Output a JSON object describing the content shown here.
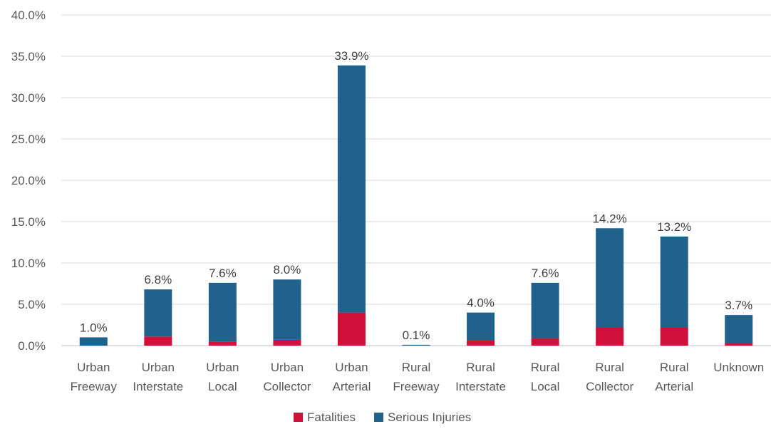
{
  "chart_data": {
    "type": "bar",
    "stacked": true,
    "categories": [
      [
        "Urban",
        "Freeway"
      ],
      [
        "Urban",
        "Interstate"
      ],
      [
        "Urban",
        "Local"
      ],
      [
        "Urban",
        "Collector"
      ],
      [
        "Urban",
        "Arterial"
      ],
      [
        "Rural",
        "Freeway"
      ],
      [
        "Rural",
        "Interstate"
      ],
      [
        "Rural",
        "Local"
      ],
      [
        "Rural",
        "Collector"
      ],
      [
        "Rural",
        "Arterial"
      ],
      [
        "Unknown"
      ]
    ],
    "series": [
      {
        "name": "Fatalities",
        "color": "#d0103a",
        "values": [
          0.0,
          1.1,
          0.5,
          0.7,
          4.0,
          0.0,
          0.6,
          0.9,
          2.2,
          2.2,
          0.3
        ]
      },
      {
        "name": "Serious Injuries",
        "color": "#21628c",
        "values": [
          1.0,
          5.7,
          7.1,
          7.3,
          29.9,
          0.1,
          3.4,
          6.7,
          12.0,
          11.0,
          3.4
        ]
      }
    ],
    "totals_labels": [
      "1.0%",
      "6.8%",
      "7.6%",
      "8.0%",
      "33.9%",
      "0.1%",
      "4.0%",
      "7.6%",
      "14.2%",
      "13.2%",
      "3.7%"
    ],
    "y_ticks": [
      "0.0%",
      "5.0%",
      "10.0%",
      "15.0%",
      "20.0%",
      "25.0%",
      "30.0%",
      "35.0%",
      "40.0%"
    ],
    "ylim": [
      0,
      40
    ],
    "grid": true,
    "legend_position": "bottom"
  }
}
